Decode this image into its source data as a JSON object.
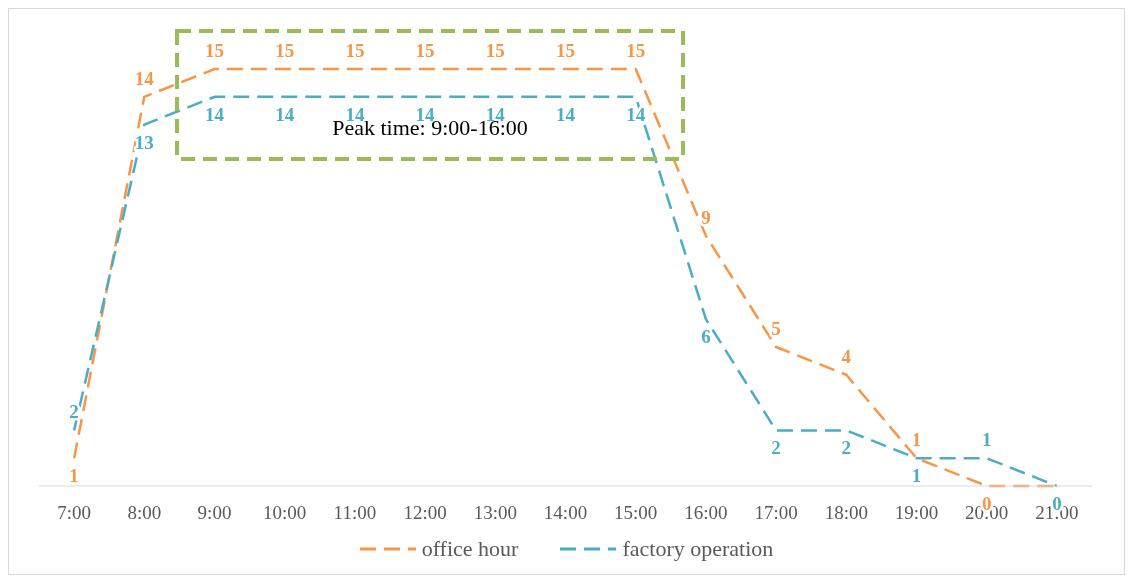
{
  "chart_data": {
    "type": "line",
    "categories": [
      "7:00",
      "8:00",
      "9:00",
      "10:00",
      "11:00",
      "12:00",
      "13:00",
      "14:00",
      "15:00",
      "16:00",
      "17:00",
      "18:00",
      "19:00",
      "20:00",
      "21:00"
    ],
    "series": [
      {
        "name": "office hour",
        "color": "#f79646",
        "values": [
          1,
          14,
          15,
          15,
          15,
          15,
          15,
          15,
          15,
          9,
          5,
          4,
          1,
          0,
          0
        ],
        "value_labels": [
          "1",
          "14",
          "15",
          "15",
          "15",
          "15",
          "15",
          "15",
          "15",
          "9",
          "5",
          "4",
          "1",
          "0",
          null
        ]
      },
      {
        "name": "factory operation",
        "color": "#4bacc6",
        "values": [
          2,
          13,
          14,
          14,
          14,
          14,
          14,
          14,
          14,
          6,
          2,
          2,
          1,
          1,
          0
        ]
      }
    ],
    "annotations": [
      "Peak time: 9:00-16:00"
    ],
    "data_labels": true,
    "line_style": "dashed",
    "marker": "none",
    "legend": "bottom",
    "tick_labels": "x"
  }
}
